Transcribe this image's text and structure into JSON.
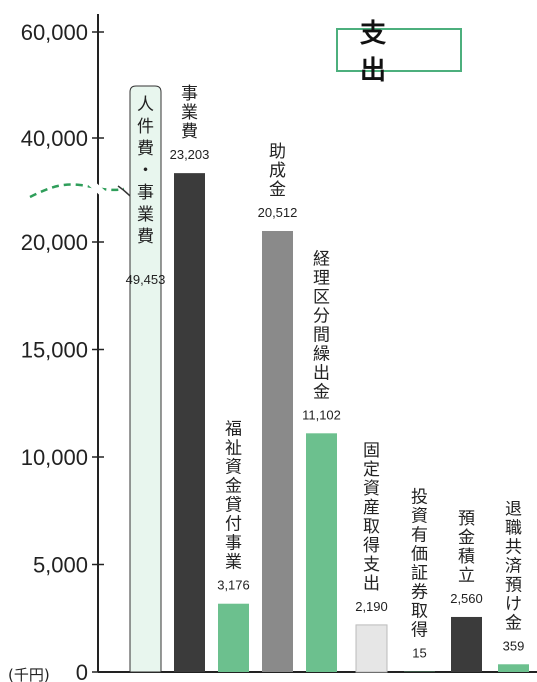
{
  "chart_data": {
    "type": "bar",
    "title": "支　出",
    "unit_label": "(千円)",
    "y_axis_break": true,
    "y_ticks_lower": [
      0,
      5000,
      10000,
      15000,
      20000
    ],
    "y_ticks_upper": [
      40000,
      60000
    ],
    "y_tick_labels": [
      "0",
      "5,000",
      "10,000",
      "15,000",
      "20,000",
      "40,000",
      "60,000"
    ],
    "grid": false,
    "bars": [
      {
        "label": "人件費・事業費",
        "value": 49453,
        "value_label": "49,453",
        "color": "#e8f6ee",
        "outlined": true
      },
      {
        "label": "事業費",
        "value": 23203,
        "value_label": "23,203",
        "color": "#3b3b3b"
      },
      {
        "label": "福祉資金貸付事業",
        "value": 3176,
        "value_label": "3,176",
        "color": "#6cc08e"
      },
      {
        "label": "助成金",
        "value": 20512,
        "value_label": "20,512",
        "color": "#8a8a8a"
      },
      {
        "label": "経理区分間繰出金",
        "value": 11102,
        "value_label": "11,102",
        "color": "#6cc08e"
      },
      {
        "label": "固定資産取得支出",
        "value": 2190,
        "value_label": "2,190",
        "color": "#e6e6e6"
      },
      {
        "label": "投資有価証券取得",
        "value": 15,
        "value_label": "15",
        "color": "#6cc08e"
      },
      {
        "label": "預金積立",
        "value": 2560,
        "value_label": "2,560",
        "color": "#3b3b3b"
      },
      {
        "label": "退職共済預け金",
        "value": 359,
        "value_label": "359",
        "color": "#6cc08e"
      }
    ]
  }
}
